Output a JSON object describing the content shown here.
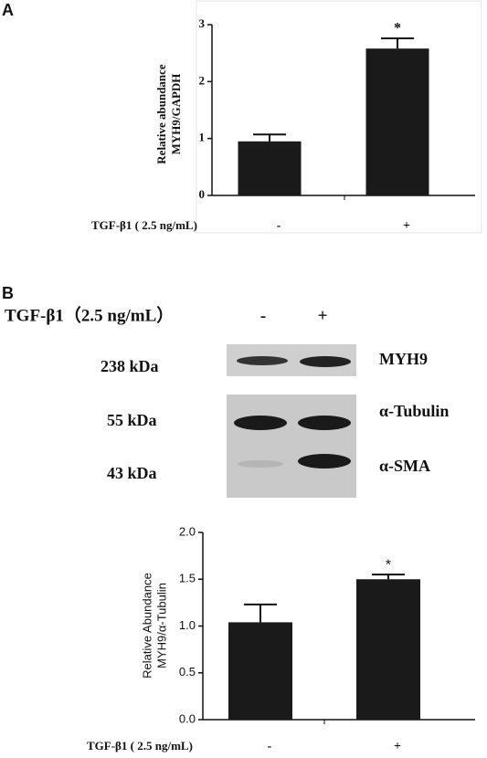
{
  "panels": [
    "A",
    "B"
  ],
  "blot": {
    "treatment": "TGF-β1（2.5 ng/mL）",
    "lanes": [
      "-",
      "+"
    ],
    "rows": [
      {
        "size": "238 kDa",
        "protein": "MYH9"
      },
      {
        "size": "55 kDa",
        "protein": "α-Tubulin"
      },
      {
        "size": "43 kDa",
        "protein": "α-SMA"
      }
    ]
  },
  "chart_data": [
    {
      "type": "bar",
      "ylabel": [
        "Relative abundance",
        "MYH9/GAPDH"
      ],
      "xlabel": "TGF-β1 ( 2.5 ng/mL)",
      "categories": [
        "-",
        "+"
      ],
      "values": [
        0.95,
        2.58
      ],
      "errors": [
        0.12,
        0.18
      ],
      "color": "#1a1a1a",
      "ylim": [
        0,
        3
      ],
      "yticks": [
        0,
        1,
        2,
        3
      ],
      "annotations": [
        {
          "text": "*",
          "category": "+"
        }
      ]
    },
    {
      "type": "bar",
      "ylabel": [
        "Relative Abundance",
        "MYH9/α-Tubulin"
      ],
      "xlabel": "TGF-β1 ( 2.5 ng/mL)",
      "categories": [
        "-",
        "+"
      ],
      "values": [
        1.04,
        1.5
      ],
      "errors": [
        0.19,
        0.05
      ],
      "color": "#1a1a1a",
      "ylim": [
        0,
        2
      ],
      "yticks": [
        {
          "value": 0,
          "label": "0.0"
        },
        0.5,
        {
          "value": 1,
          "label": "1.0"
        },
        1.5,
        {
          "value": 2,
          "label": "2.0"
        }
      ],
      "annotations": [
        {
          "text": "*",
          "category": "+"
        }
      ]
    }
  ]
}
